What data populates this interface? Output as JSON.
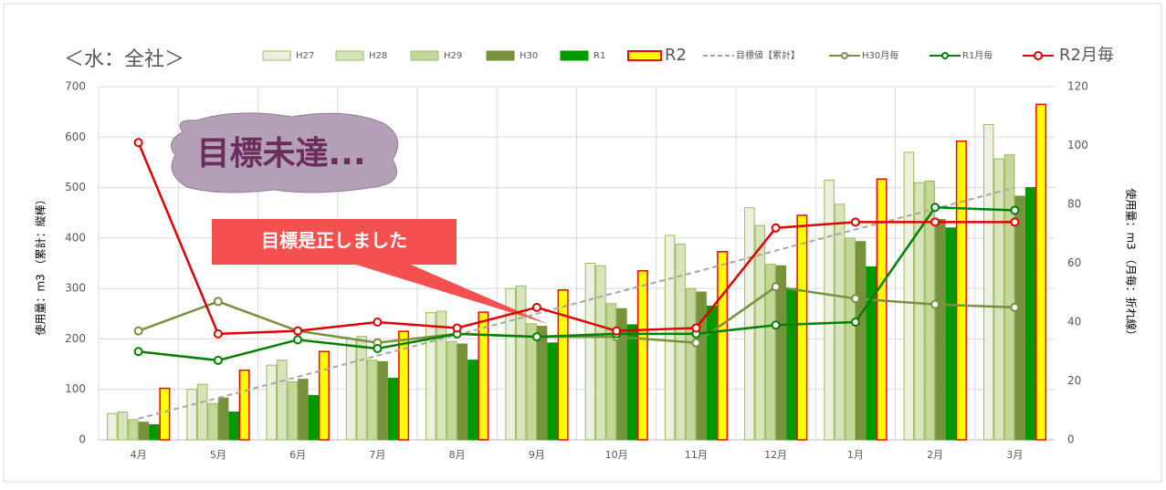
{
  "chart_data": {
    "type": "bar",
    "title": "＜水：全社＞",
    "ylabel": "使用量：m3 （累計：縦棒）",
    "y2label": "使用量：m3 （月毎：折れ線）",
    "annotations": [
      "目標未達...",
      "目標是正しました"
    ],
    "categories": [
      "4月",
      "5月",
      "6月",
      "7月",
      "8月",
      "9月",
      "10月",
      "11月",
      "12月",
      "1月",
      "2月",
      "3月"
    ],
    "ylim": [
      0,
      700
    ],
    "yticks": [
      0,
      100,
      200,
      300,
      400,
      500,
      600,
      700
    ],
    "y2lim": [
      0,
      120
    ],
    "y2ticks": [
      0,
      20,
      40,
      60,
      80,
      100,
      120
    ],
    "grid": true,
    "series": [
      {
        "name": "H27",
        "type": "bar",
        "color": "#ebf1de",
        "edgecolor": "#9bbb59",
        "values": [
          52,
          100,
          148,
          200,
          252,
          300,
          350,
          405,
          460,
          515,
          570,
          625
        ]
      },
      {
        "name": "H28",
        "type": "bar",
        "color": "#d8e4bc",
        "edgecolor": "#9bbb59",
        "values": [
          55,
          110,
          158,
          205,
          255,
          305,
          345,
          388,
          425,
          467,
          510,
          557
        ]
      },
      {
        "name": "H29",
        "type": "bar",
        "color": "#c4d79b",
        "edgecolor": "#9bbb59",
        "values": [
          40,
          72,
          115,
          158,
          195,
          230,
          270,
          300,
          348,
          400,
          513,
          565
        ]
      },
      {
        "name": "H30",
        "type": "bar",
        "color": "#76923c",
        "edgecolor": "#76923c",
        "values": [
          35,
          83,
          120,
          155,
          190,
          225,
          260,
          293,
          345,
          393,
          437,
          483
        ]
      },
      {
        "name": "R1",
        "type": "bar",
        "color": "#009a00",
        "edgecolor": "#009a00",
        "values": [
          30,
          55,
          88,
          122,
          158,
          192,
          228,
          265,
          300,
          343,
          420,
          500
        ]
      },
      {
        "name": "R2",
        "type": "bar",
        "color": "#ffff00",
        "edgecolor": "#ff0000",
        "values": [
          102,
          138,
          175,
          215,
          253,
          297,
          335,
          373,
          445,
          517,
          592,
          665
        ]
      },
      {
        "name": "目標値【累計】",
        "type": "line",
        "dashed": true,
        "color": "#a6a6a6",
        "values": [
          42,
          83,
          125,
          167,
          208,
          250,
          292,
          333,
          375,
          417,
          458,
          500
        ]
      },
      {
        "name": "H30月毎",
        "type": "line",
        "axis": "y2",
        "color": "#76923c",
        "values": [
          37,
          47,
          37,
          33,
          36,
          35,
          35,
          33,
          52,
          48,
          46,
          45
        ]
      },
      {
        "name": "R1月毎",
        "type": "line",
        "axis": "y2",
        "color": "#008000",
        "values": [
          30,
          27,
          34,
          31,
          36,
          35,
          36,
          36,
          39,
          40,
          79,
          78
        ]
      },
      {
        "name": "R2月毎",
        "type": "line",
        "axis": "y2",
        "color": "#e00000",
        "values": [
          101,
          36,
          37,
          40,
          38,
          45,
          37,
          38,
          72,
          74,
          74,
          74
        ]
      }
    ]
  }
}
